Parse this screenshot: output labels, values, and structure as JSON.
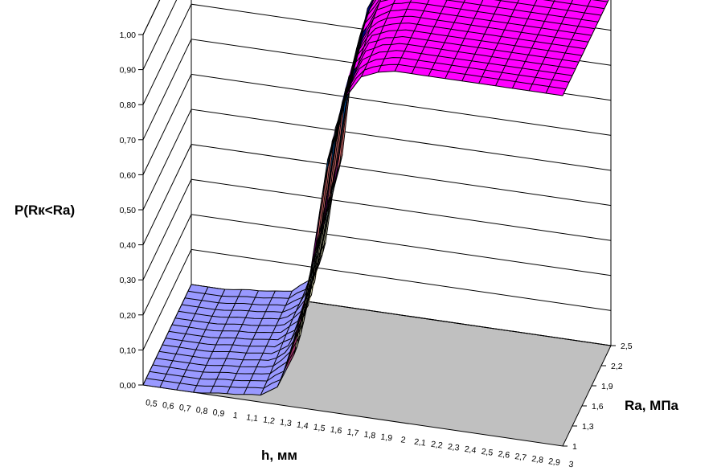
{
  "chart_data": {
    "type": "surface",
    "title": "",
    "zlabel": "P(Rк<Ra)",
    "xlabel": "h, мм",
    "ylabel": "Ra, МПа",
    "zlim": [
      0,
      1
    ],
    "z_ticks": [
      "0,00",
      "0,10",
      "0,20",
      "0,30",
      "0,40",
      "0,50",
      "0,60",
      "0,70",
      "0,80",
      "0,90",
      "1,00"
    ],
    "x_ticks": [
      "0,5",
      "0,6",
      "0,7",
      "0,8",
      "0,9",
      "1",
      "1,1",
      "1,2",
      "1,3",
      "1,4",
      "1,5",
      "1,6",
      "1,7",
      "1,8",
      "1,9",
      "2",
      "2,1",
      "2,2",
      "2,3",
      "2,4",
      "2,5",
      "2,6",
      "2,7",
      "2,8",
      "2,9",
      "3"
    ],
    "y_ticks": [
      "1",
      "1,3",
      "1,6",
      "1,9",
      "2,2",
      "2,5"
    ],
    "x_range": [
      0.5,
      3
    ],
    "y_range": [
      1,
      2.5
    ],
    "surface_profile": {
      "description_values": "P rises from 0 to 1 along h",
      "h": [
        0.5,
        0.8,
        1.0,
        1.2,
        1.3,
        1.4,
        1.5,
        1.6,
        1.7,
        1.8,
        1.9,
        2.0,
        2.2,
        2.5,
        3.0
      ],
      "p_at_Ra_min": [
        0.0,
        0.0,
        0.01,
        0.02,
        0.05,
        0.15,
        0.4,
        0.72,
        0.9,
        0.97,
        0.99,
        1.0,
        1.0,
        1.0,
        1.0
      ]
    },
    "band_colors": [
      "#9999ff",
      "#993366",
      "#ffffcc",
      "#ccffff",
      "#660066",
      "#ff8080",
      "#0066cc",
      "#ccccff",
      "#000080",
      "#ff00ff"
    ],
    "grid_line_color": "#000000",
    "floor_color": "#c0c0c0"
  }
}
